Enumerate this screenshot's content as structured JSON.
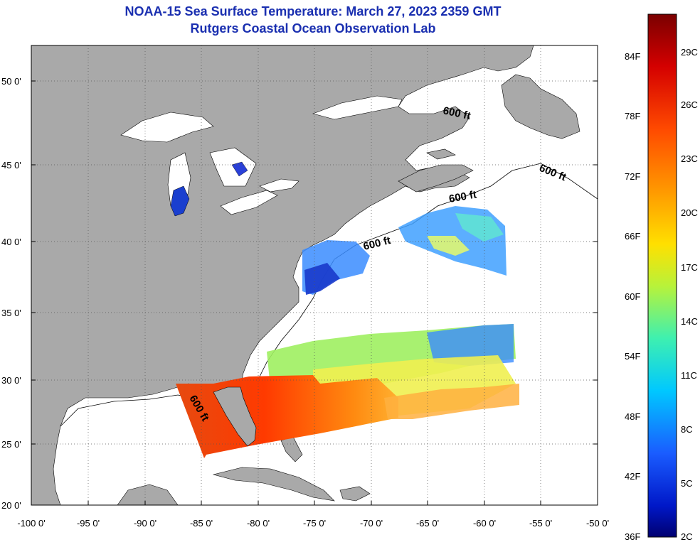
{
  "header": {
    "title": "NOAA-15 Sea Surface Temperature:  March 27, 2023 2359 GMT",
    "subtitle": "Rutgers Coastal Ocean Observation Lab"
  },
  "map": {
    "lat_ticks": [
      "50 0'",
      "45 0'",
      "40 0'",
      "35 0'",
      "30 0'",
      "25 0'",
      "20 0'"
    ],
    "lon_ticks": [
      "-100 0'",
      "-95 0'",
      "-90 0'",
      "-85 0'",
      "-80 0'",
      "-75 0'",
      "-70 0'",
      "-65 0'",
      "-60 0'",
      "-55 0'",
      "-50 0'"
    ],
    "contour_labels": [
      "600 ft",
      "600 ft",
      "600 ft",
      "600 ft",
      "600 ft"
    ],
    "colors": {
      "land": "#a9a9a9",
      "ocean": "#ffffff",
      "title": "#1a2fb0"
    }
  },
  "colorbar": {
    "fahrenheit": [
      "84F",
      "78F",
      "72F",
      "66F",
      "60F",
      "54F",
      "48F",
      "42F",
      "36F"
    ],
    "celsius": [
      "29C",
      "26C",
      "23C",
      "20C",
      "17C",
      "14C",
      "11C",
      "8C",
      "5C",
      "2C"
    ]
  }
}
